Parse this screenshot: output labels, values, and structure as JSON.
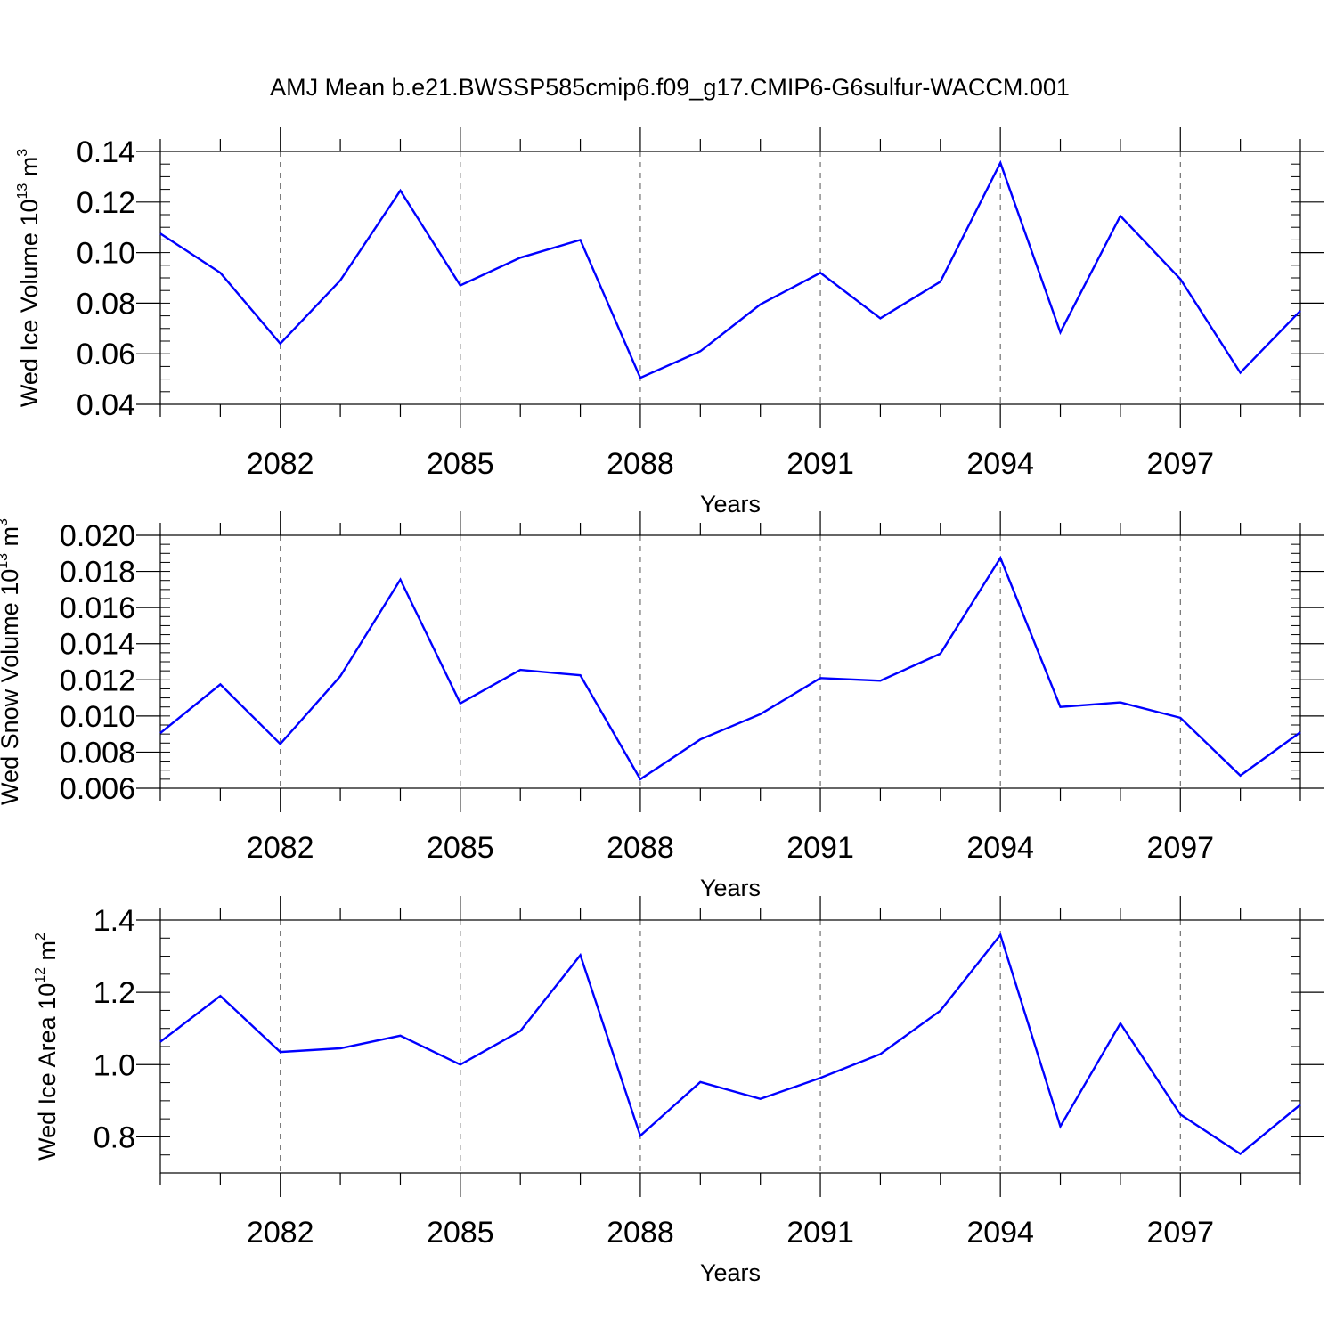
{
  "figure": {
    "title": "AMJ Mean b.e21.BWSSP585cmip6.f09_g17.CMIP6-G6sulfur-WACCM.001",
    "line_color": "#0000ff",
    "grid_color": "#555555"
  },
  "chart_data": [
    {
      "type": "line",
      "title": "",
      "xlabel": "Years",
      "ylabel": {
        "prefix": "Wed Ice Volume 10",
        "exponent": "13",
        "unit": " m",
        "unit_exponent": "3"
      },
      "xlim": [
        2080,
        2099
      ],
      "ylim": [
        0.04,
        0.14
      ],
      "x_ticks": [
        2082,
        2085,
        2088,
        2091,
        2094,
        2097
      ],
      "x_tick_labels": [
        "2082",
        "2085",
        "2088",
        "2091",
        "2094",
        "2097"
      ],
      "y_ticks": [
        0.04,
        0.06,
        0.08,
        0.1,
        0.12,
        0.14
      ],
      "y_tick_labels": [
        "0.04",
        "0.06",
        "0.08",
        "0.10",
        "0.12",
        "0.14"
      ],
      "y_minor_step": 0.005,
      "grid": "vertical dashed at major x ticks",
      "x": [
        2080,
        2081,
        2082,
        2083,
        2084,
        2085,
        2086,
        2087,
        2088,
        2089,
        2090,
        2091,
        2092,
        2093,
        2094,
        2095,
        2096,
        2097,
        2098,
        2099
      ],
      "series": [
        {
          "values": [
            0.1075,
            0.092,
            0.064,
            0.089,
            0.1245,
            0.087,
            0.098,
            0.105,
            0.0505,
            0.061,
            0.0795,
            0.092,
            0.074,
            0.0885,
            0.1355,
            0.0685,
            0.1145,
            0.0895,
            0.0525,
            0.077
          ]
        }
      ]
    },
    {
      "type": "line",
      "title": "",
      "xlabel": "Years",
      "ylabel": {
        "prefix": "Wed Snow Volume 10",
        "exponent": "13",
        "unit": " m",
        "unit_exponent": "3"
      },
      "xlim": [
        2080,
        2099
      ],
      "ylim": [
        0.006,
        0.02
      ],
      "x_ticks": [
        2082,
        2085,
        2088,
        2091,
        2094,
        2097
      ],
      "x_tick_labels": [
        "2082",
        "2085",
        "2088",
        "2091",
        "2094",
        "2097"
      ],
      "y_ticks": [
        0.006,
        0.008,
        0.01,
        0.012,
        0.014,
        0.016,
        0.018,
        0.02
      ],
      "y_tick_labels": [
        "0.006",
        "0.008",
        "0.010",
        "0.012",
        "0.014",
        "0.016",
        "0.018",
        "0.020"
      ],
      "y_minor_step": 0.0005,
      "grid": "vertical dashed at major x ticks",
      "x": [
        2080,
        2081,
        2082,
        2083,
        2084,
        2085,
        2086,
        2087,
        2088,
        2089,
        2090,
        2091,
        2092,
        2093,
        2094,
        2095,
        2096,
        2097,
        2098,
        2099
      ],
      "series": [
        {
          "values": [
            0.00905,
            0.01175,
            0.00845,
            0.0122,
            0.01755,
            0.0107,
            0.01255,
            0.01225,
            0.0065,
            0.0087,
            0.0101,
            0.0121,
            0.01195,
            0.01345,
            0.01875,
            0.0105,
            0.01075,
            0.0099,
            0.0067,
            0.0091
          ]
        }
      ]
    },
    {
      "type": "line",
      "title": "",
      "xlabel": "Years",
      "ylabel": {
        "prefix": "Wed Ice Area 10",
        "exponent": "12",
        "unit": " m",
        "unit_exponent": "2"
      },
      "xlim": [
        2080,
        2099
      ],
      "ylim": [
        0.7,
        1.4
      ],
      "x_ticks": [
        2082,
        2085,
        2088,
        2091,
        2094,
        2097
      ],
      "x_tick_labels": [
        "2082",
        "2085",
        "2088",
        "2091",
        "2094",
        "2097"
      ],
      "y_ticks": [
        0.8,
        1.0,
        1.2,
        1.4
      ],
      "y_tick_labels": [
        "0.8",
        "1.0",
        "1.2",
        "1.4"
      ],
      "y_minor_step": 0.05,
      "grid": "vertical dashed at major x ticks",
      "x": [
        2080,
        2081,
        2082,
        2083,
        2084,
        2085,
        2086,
        2087,
        2088,
        2089,
        2090,
        2091,
        2092,
        2093,
        2094,
        2095,
        2096,
        2097,
        2098,
        2099
      ],
      "series": [
        {
          "values": [
            1.063,
            1.19,
            1.035,
            1.045,
            1.08,
            1.0,
            1.093,
            1.303,
            0.803,
            0.952,
            0.905,
            0.963,
            1.029,
            1.149,
            1.359,
            0.829,
            1.114,
            0.862,
            0.753,
            0.889
          ]
        }
      ]
    }
  ]
}
